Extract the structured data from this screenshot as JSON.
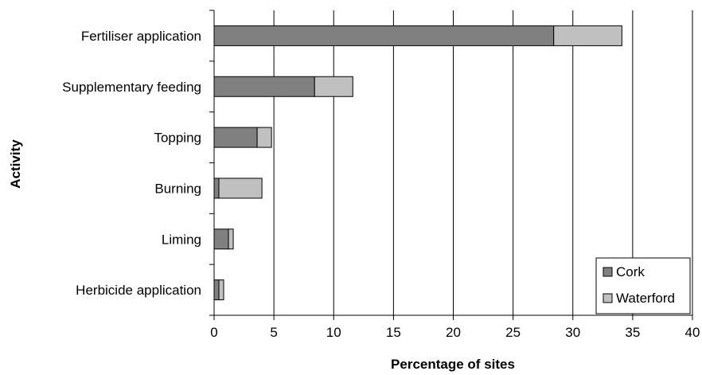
{
  "chart_data": {
    "type": "bar",
    "orientation": "horizontal",
    "stacked": true,
    "categories": [
      "Fertiliser application",
      "Supplementary feeding",
      "Topping",
      "Burning",
      "Liming",
      "Herbicide application"
    ],
    "series": [
      {
        "name": "Cork",
        "values": [
          28.4,
          8.4,
          3.6,
          0.4,
          1.2,
          0.4
        ],
        "color": "#808080"
      },
      {
        "name": "Waterford",
        "values": [
          5.7,
          3.2,
          1.2,
          3.6,
          0.4,
          0.4
        ],
        "color": "#c0c0c0"
      }
    ],
    "xlabel": "Percentage of sites",
    "ylabel": "Activity",
    "xlim": [
      0,
      40
    ],
    "xticks": [
      0,
      5,
      10,
      15,
      20,
      25,
      30,
      35,
      40
    ],
    "grid": "vertical",
    "legend_position": "bottom-right"
  }
}
